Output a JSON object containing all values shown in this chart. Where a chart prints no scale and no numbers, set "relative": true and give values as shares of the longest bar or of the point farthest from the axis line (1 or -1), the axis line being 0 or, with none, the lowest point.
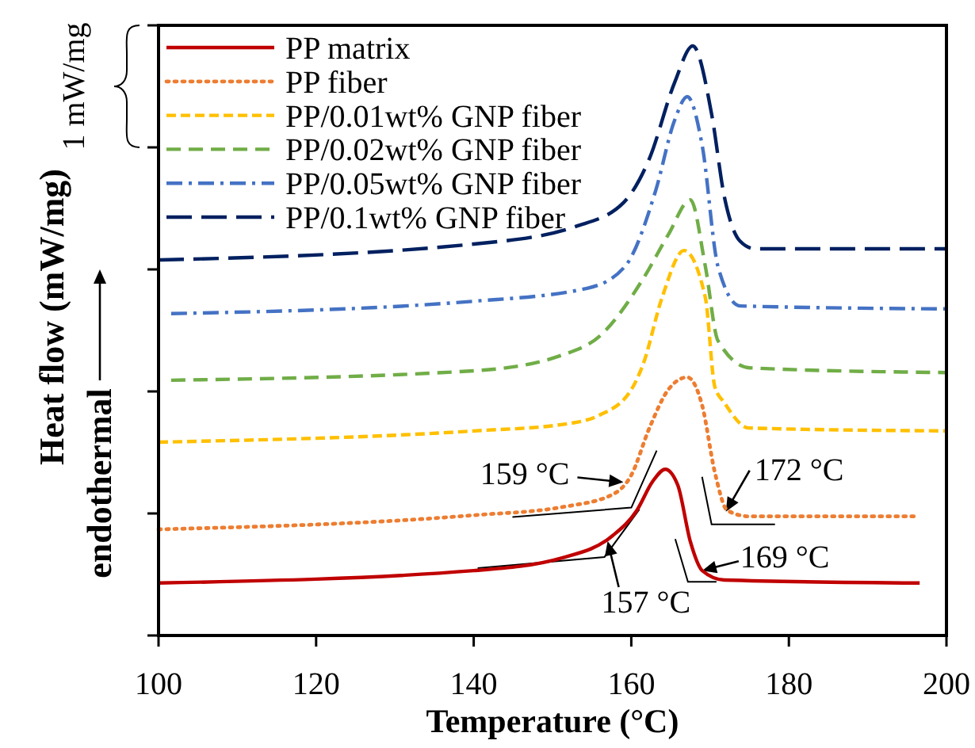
{
  "chart_data": {
    "type": "line",
    "relative": true,
    "xlabel": "Temperature (°C)",
    "ylabel": "Heat flow (mW/mg)",
    "xlim": [
      100,
      200
    ],
    "xticks": [
      100,
      120,
      140,
      160,
      180,
      200
    ],
    "legend": "top left",
    "grid": false,
    "marker": "none",
    "series": [
      {
        "name": "PP matrix",
        "color": "#c00000",
        "line_style": "solid",
        "x": [
          100,
          140,
          151.3,
          157.6,
          160.7,
          162.7,
          164.3,
          165.9,
          167.5,
          169,
          171.8,
          196.6
        ],
        "values": [
          0.089,
          0.11,
          0.132,
          0.169,
          0.212,
          0.261,
          0.282,
          0.255,
          0.159,
          0.11,
          0.094,
          0.089
        ]
      },
      {
        "name": "PP fiber",
        "color": "#ed7d31",
        "line_style": "dotted",
        "x": [
          100,
          140,
          151.3,
          157.6,
          160,
          162.3,
          164.7,
          167.1,
          169,
          170.6,
          172.2,
          175,
          196.3
        ],
        "values": [
          0.18,
          0.204,
          0.218,
          0.239,
          0.272,
          0.352,
          0.417,
          0.438,
          0.39,
          0.277,
          0.212,
          0.202,
          0.202
        ]
      },
      {
        "name": "PP/0.01wt% GNP fiber",
        "color": "#ffc000",
        "line_style": "dashed",
        "x": [
          100,
          140,
          151.3,
          156,
          160,
          161.5,
          163.9,
          166.7,
          169.4,
          170.6,
          171.8,
          174.9,
          200
        ],
        "values": [
          0.328,
          0.347,
          0.358,
          0.374,
          0.417,
          0.46,
          0.573,
          0.653,
          0.573,
          0.422,
          0.395,
          0.352,
          0.347
        ]
      },
      {
        "name": "PP/0.02wt% GNP fiber",
        "color": "#70ad47",
        "line_style": "dashed",
        "x": [
          101.6,
          140,
          151.3,
          156,
          161.5,
          164.7,
          167.5,
          169.4,
          171,
          175,
          200
        ],
        "values": [
          0.433,
          0.449,
          0.476,
          0.508,
          0.605,
          0.68,
          0.739,
          0.626,
          0.5,
          0.454,
          0.446
        ]
      },
      {
        "name": "PP/0.05wt% GNP fiber",
        "color": "#4472c4",
        "line_style": "dashed",
        "x": [
          101.6,
          140,
          154.4,
          159.2,
          163.1,
          165.5,
          167.1,
          169,
          171,
          173.8,
          200
        ],
        "values": [
          0.546,
          0.567,
          0.589,
          0.626,
          0.755,
          0.874,
          0.914,
          0.831,
          0.626,
          0.559,
          0.554
        ]
      },
      {
        "name": "PP/0.1wt% GNP fiber",
        "color": "#002060",
        "line_style": "dashed",
        "x": [
          100,
          140,
          153,
          159,
          162.3,
          165.5,
          167.8,
          170.2,
          171.8,
          173.8,
          175.7,
          200
        ],
        "values": [
          0.637,
          0.664,
          0.694,
          0.734,
          0.809,
          0.938,
          1.0,
          0.884,
          0.745,
          0.669,
          0.656,
          0.656
        ]
      }
    ],
    "annotations": [
      {
        "text": "159 °C",
        "x": 159,
        "y": 0.26
      },
      {
        "text": "172 °C",
        "x": 172,
        "y": 0.21
      },
      {
        "text": "169 °C",
        "x": 169,
        "y": 0.11
      },
      {
        "text": "157 °C",
        "x": 157,
        "y": 0.16
      },
      "1 mW/mg",
      "endothermal"
    ]
  }
}
